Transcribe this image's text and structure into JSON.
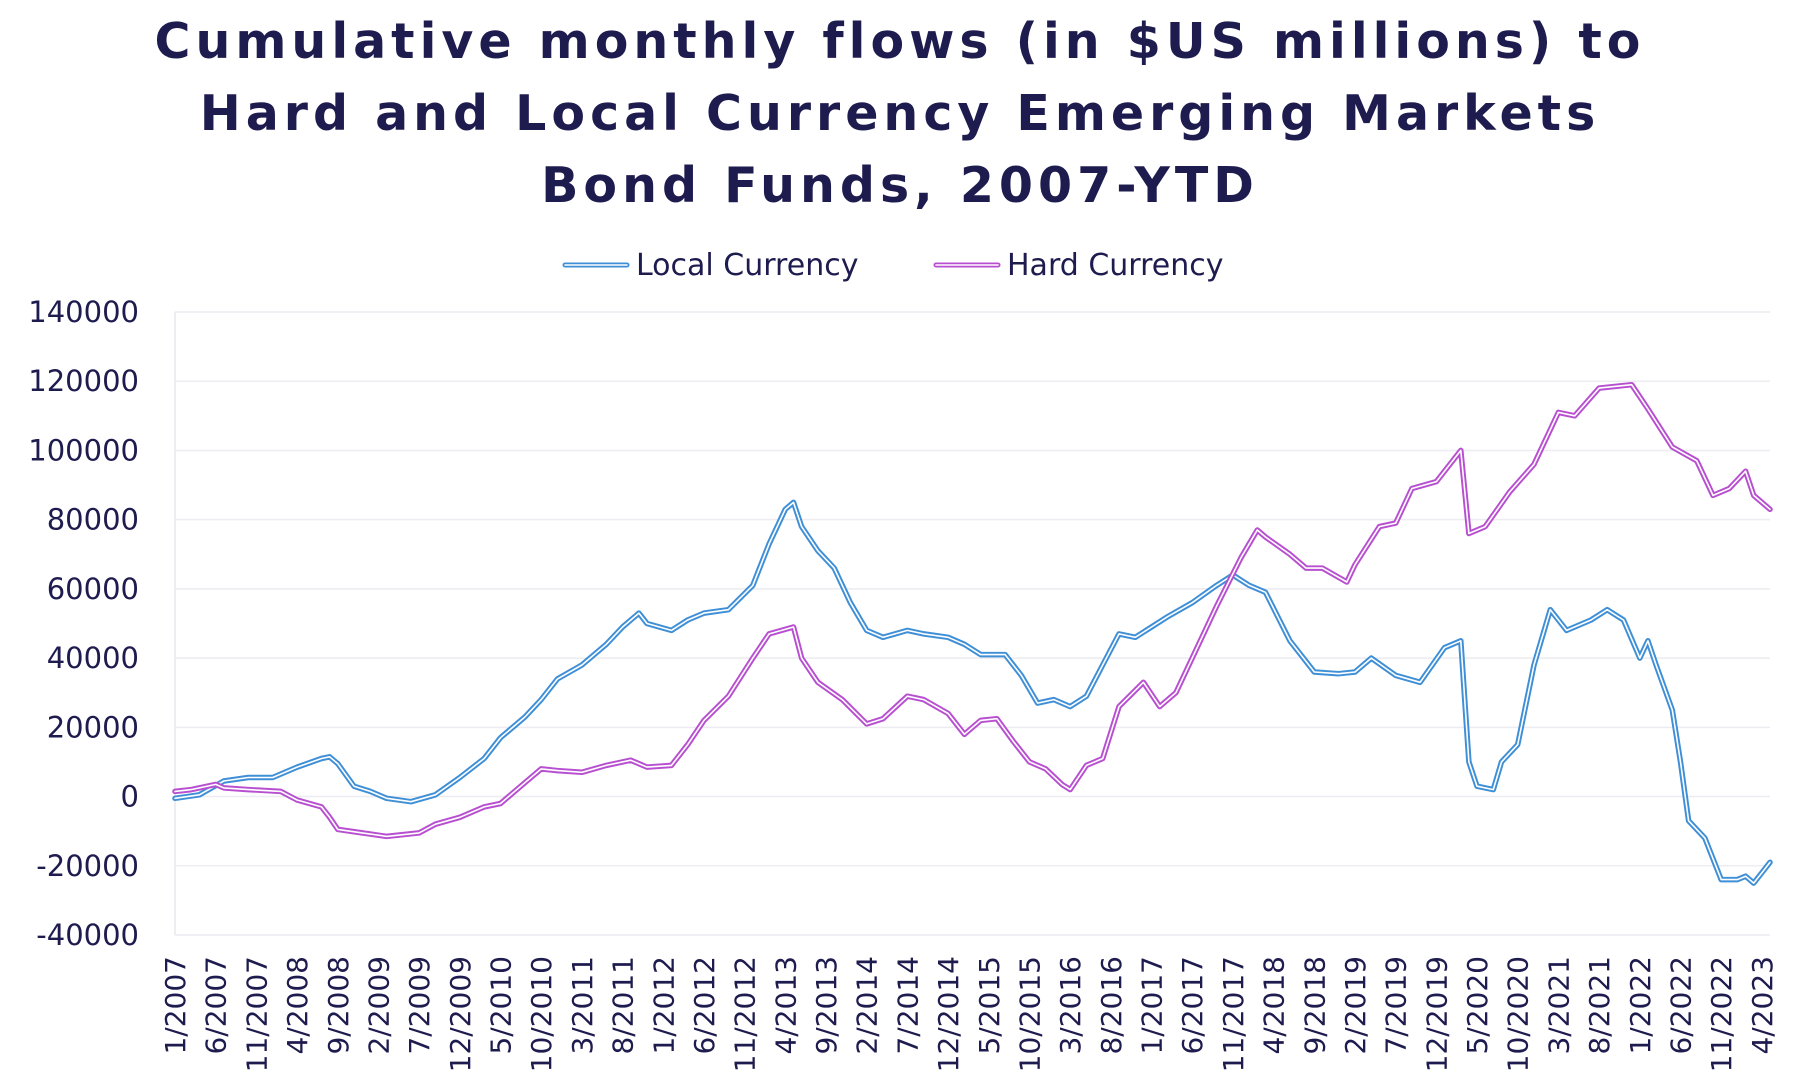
{
  "chart_data": {
    "type": "line",
    "title": "Cumulative monthly flows (in $US millions) to Hard and Local Currency Emerging Markets Bond Funds, 2007-YTD",
    "title_lines": [
      "Cumulative monthly flows (in $US millions) to",
      "Hard and Local Currency Emerging Markets",
      "Bond Funds, 2007-YTD"
    ],
    "xlabel": "",
    "ylabel": "",
    "ylim": [
      -40000,
      140000
    ],
    "yticks": [
      140000,
      120000,
      100000,
      80000,
      60000,
      40000,
      20000,
      0,
      -20000,
      -40000
    ],
    "ytick_labels": [
      "140000",
      "120000",
      "100000",
      "80000",
      "60000",
      "40000",
      "20000",
      "0",
      "-20000",
      "-40000"
    ],
    "x_range": [
      "1/2007",
      "5/2023"
    ],
    "xtick_labels": [
      "1/2007",
      "6/2007",
      "11/2007",
      "4/2008",
      "9/2008",
      "2/2009",
      "7/2009",
      "12/2009",
      "5/2010",
      "10/2010",
      "3/2011",
      "8/2011",
      "1/2012",
      "6/2012",
      "11/2012",
      "4/2013",
      "9/2013",
      "2/2014",
      "7/2014",
      "12/2014",
      "5/2015",
      "10/2015",
      "3/2016",
      "8/2016",
      "1/2017",
      "6/2017",
      "11/2017",
      "4/2018",
      "9/2018",
      "2/2019",
      "7/2019",
      "12/2019",
      "5/2020",
      "10/2020",
      "3/2021",
      "8/2021",
      "1/2022",
      "6/2022",
      "11/2022",
      "4/2023"
    ],
    "grid": true,
    "legend_position": "top-center",
    "series": [
      {
        "name": "Local Currency",
        "color": "#3f8fd6",
        "points": [
          [
            "1/2007",
            -500
          ],
          [
            "4/2007",
            500
          ],
          [
            "7/2007",
            4500
          ],
          [
            "10/2007",
            5500
          ],
          [
            "1/2008",
            5500
          ],
          [
            "4/2008",
            8500
          ],
          [
            "7/2008",
            11000
          ],
          [
            "8/2008",
            11500
          ],
          [
            "9/2008",
            9500
          ],
          [
            "11/2008",
            3000
          ],
          [
            "1/2009",
            1500
          ],
          [
            "3/2009",
            -500
          ],
          [
            "6/2009",
            -1500
          ],
          [
            "9/2009",
            500
          ],
          [
            "12/2009",
            5500
          ],
          [
            "3/2010",
            11000
          ],
          [
            "5/2010",
            17000
          ],
          [
            "8/2010",
            23000
          ],
          [
            "10/2010",
            28000
          ],
          [
            "12/2010",
            34000
          ],
          [
            "3/2011",
            38000
          ],
          [
            "6/2011",
            44000
          ],
          [
            "8/2011",
            49000
          ],
          [
            "10/2011",
            53000
          ],
          [
            "11/2011",
            50000
          ],
          [
            "2/2012",
            48000
          ],
          [
            "4/2012",
            51000
          ],
          [
            "6/2012",
            53000
          ],
          [
            "9/2012",
            54000
          ],
          [
            "12/2012",
            61000
          ],
          [
            "2/2013",
            73000
          ],
          [
            "4/2013",
            83000
          ],
          [
            "5/2013",
            85000
          ],
          [
            "6/2013",
            78000
          ],
          [
            "8/2013",
            71000
          ],
          [
            "10/2013",
            66000
          ],
          [
            "12/2013",
            56000
          ],
          [
            "2/2014",
            48000
          ],
          [
            "4/2014",
            46000
          ],
          [
            "7/2014",
            48000
          ],
          [
            "9/2014",
            47000
          ],
          [
            "12/2014",
            46000
          ],
          [
            "2/2015",
            44000
          ],
          [
            "4/2015",
            41000
          ],
          [
            "7/2015",
            41000
          ],
          [
            "9/2015",
            35000
          ],
          [
            "11/2015",
            27000
          ],
          [
            "1/2016",
            28000
          ],
          [
            "3/2016",
            26000
          ],
          [
            "5/2016",
            29000
          ],
          [
            "7/2016",
            38000
          ],
          [
            "9/2016",
            47000
          ],
          [
            "11/2016",
            46000
          ],
          [
            "1/2017",
            49000
          ],
          [
            "3/2017",
            52000
          ],
          [
            "6/2017",
            56000
          ],
          [
            "9/2017",
            61000
          ],
          [
            "11/2017",
            64000
          ],
          [
            "1/2018",
            61000
          ],
          [
            "3/2018",
            59000
          ],
          [
            "6/2018",
            45000
          ],
          [
            "9/2018",
            36000
          ],
          [
            "12/2018",
            35500
          ],
          [
            "2/2019",
            36000
          ],
          [
            "4/2019",
            40000
          ],
          [
            "7/2019",
            35000
          ],
          [
            "10/2019",
            33000
          ],
          [
            "1/2020",
            43000
          ],
          [
            "3/2020",
            45000
          ],
          [
            "4/2020",
            10000
          ],
          [
            "5/2020",
            3000
          ],
          [
            "7/2020",
            2000
          ],
          [
            "8/2020",
            10000
          ],
          [
            "10/2020",
            15000
          ],
          [
            "12/2020",
            38000
          ],
          [
            "2/2021",
            54000
          ],
          [
            "4/2021",
            48000
          ],
          [
            "7/2021",
            51000
          ],
          [
            "9/2021",
            54000
          ],
          [
            "11/2021",
            51000
          ],
          [
            "1/2022",
            40000
          ],
          [
            "2/2022",
            45000
          ],
          [
            "3/2022",
            38000
          ],
          [
            "5/2022",
            25000
          ],
          [
            "6/2022",
            10000
          ],
          [
            "7/2022",
            -7000
          ],
          [
            "9/2022",
            -12000
          ],
          [
            "11/2022",
            -24000
          ],
          [
            "1/2023",
            -24000
          ],
          [
            "2/2023",
            -23000
          ],
          [
            "3/2023",
            -25000
          ],
          [
            "4/2023",
            -22000
          ],
          [
            "5/2023",
            -19000
          ]
        ]
      },
      {
        "name": "Hard Currency",
        "color": "#b84fd0",
        "points": [
          [
            "1/2007",
            1500
          ],
          [
            "3/2007",
            2000
          ],
          [
            "6/2007",
            3500
          ],
          [
            "7/2007",
            2500
          ],
          [
            "10/2007",
            2000
          ],
          [
            "2/2008",
            1500
          ],
          [
            "4/2008",
            -1000
          ],
          [
            "7/2008",
            -3000
          ],
          [
            "8/2008",
            -6000
          ],
          [
            "9/2008",
            -9500
          ],
          [
            "12/2008",
            -10500
          ],
          [
            "3/2009",
            -11500
          ],
          [
            "7/2009",
            -10500
          ],
          [
            "9/2009",
            -8000
          ],
          [
            "12/2009",
            -6000
          ],
          [
            "3/2010",
            -3000
          ],
          [
            "5/2010",
            -2000
          ],
          [
            "8/2010",
            4000
          ],
          [
            "10/2010",
            8000
          ],
          [
            "12/2010",
            7500
          ],
          [
            "3/2011",
            7000
          ],
          [
            "6/2011",
            9000
          ],
          [
            "9/2011",
            10500
          ],
          [
            "11/2011",
            8500
          ],
          [
            "2/2012",
            9000
          ],
          [
            "4/2012",
            15000
          ],
          [
            "6/2012",
            22000
          ],
          [
            "9/2012",
            29000
          ],
          [
            "12/2012",
            40000
          ],
          [
            "2/2013",
            47000
          ],
          [
            "5/2013",
            49000
          ],
          [
            "6/2013",
            40000
          ],
          [
            "8/2013",
            33000
          ],
          [
            "11/2013",
            28000
          ],
          [
            "2/2014",
            21000
          ],
          [
            "4/2014",
            22500
          ],
          [
            "7/2014",
            29000
          ],
          [
            "9/2014",
            28000
          ],
          [
            "12/2014",
            24000
          ],
          [
            "2/2015",
            18000
          ],
          [
            "4/2015",
            22000
          ],
          [
            "6/2015",
            22500
          ],
          [
            "8/2015",
            16000
          ],
          [
            "10/2015",
            10000
          ],
          [
            "12/2015",
            8000
          ],
          [
            "2/2016",
            3500
          ],
          [
            "3/2016",
            2000
          ],
          [
            "5/2016",
            9000
          ],
          [
            "7/2016",
            11000
          ],
          [
            "9/2016",
            26000
          ],
          [
            "12/2016",
            33000
          ],
          [
            "2/2017",
            26000
          ],
          [
            "4/2017",
            30000
          ],
          [
            "9/2017",
            55000
          ],
          [
            "12/2017",
            69000
          ],
          [
            "2/2018",
            77000
          ],
          [
            "3/2018",
            75000
          ],
          [
            "6/2018",
            70000
          ],
          [
            "8/2018",
            66000
          ],
          [
            "10/2018",
            66000
          ],
          [
            "1/2019",
            62000
          ],
          [
            "2/2019",
            67000
          ],
          [
            "5/2019",
            78000
          ],
          [
            "7/2019",
            79000
          ],
          [
            "9/2019",
            89000
          ],
          [
            "12/2019",
            91000
          ],
          [
            "3/2020",
            100000
          ],
          [
            "4/2020",
            76000
          ],
          [
            "6/2020",
            78000
          ],
          [
            "9/2020",
            88000
          ],
          [
            "12/2020",
            96000
          ],
          [
            "3/2021",
            111000
          ],
          [
            "5/2021",
            110000
          ],
          [
            "8/2021",
            118000
          ],
          [
            "12/2021",
            119000
          ],
          [
            "2/2022",
            112000
          ],
          [
            "5/2022",
            101000
          ],
          [
            "8/2022",
            97000
          ],
          [
            "10/2022",
            87000
          ],
          [
            "12/2022",
            89000
          ],
          [
            "2/2023",
            94000
          ],
          [
            "3/2023",
            87000
          ],
          [
            "5/2023",
            83000
          ]
        ]
      }
    ]
  }
}
